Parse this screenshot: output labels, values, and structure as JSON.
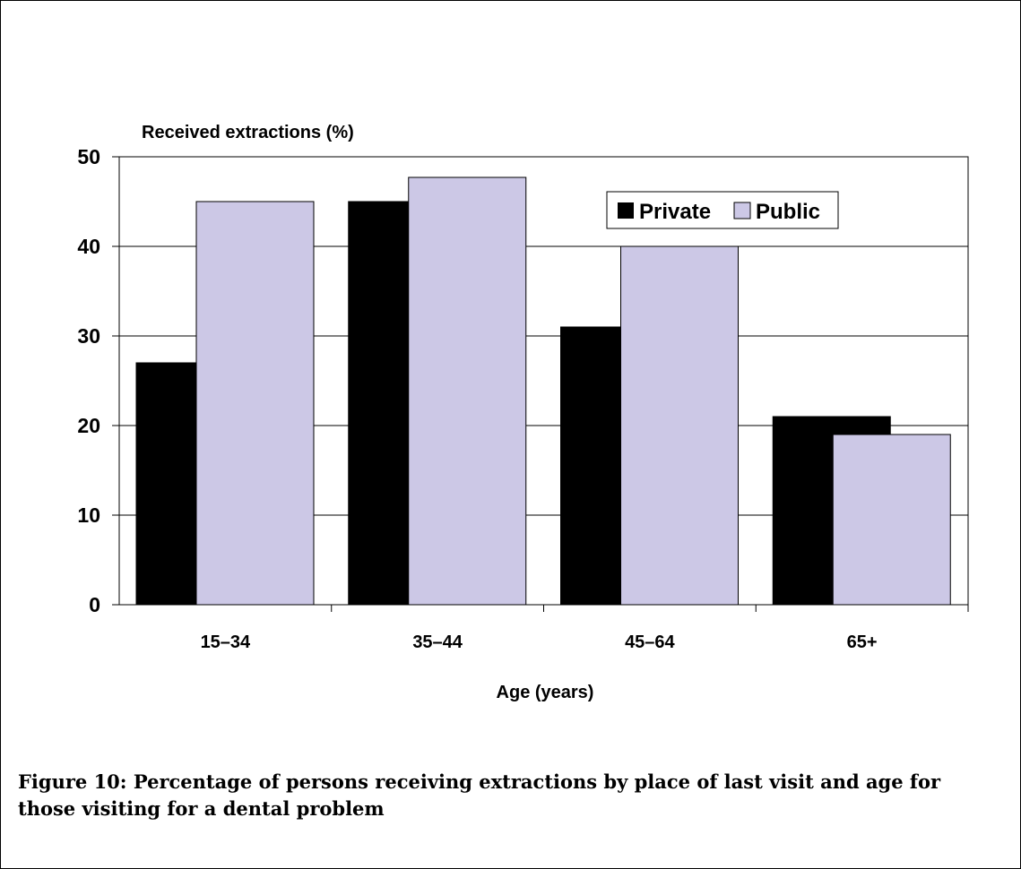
{
  "chart_data": {
    "type": "bar",
    "ylabel": "Received extractions (%)",
    "xlabel": "Age (years)",
    "categories": [
      "15–34",
      "35–44",
      "45–64",
      "65+"
    ],
    "series": [
      {
        "name": "Private",
        "color": "#000000",
        "values": [
          27,
          45,
          31,
          21
        ]
      },
      {
        "name": "Public",
        "color": "#ccc8e6",
        "values": [
          45,
          47.7,
          40,
          19
        ]
      }
    ],
    "ylim": [
      0,
      50
    ],
    "yticks": [
      "0",
      "10",
      "20",
      "30",
      "40",
      "50"
    ],
    "grid": true,
    "legend_position": "top-right"
  },
  "caption": {
    "line1": "Figure 10:  Percentage of persons receiving extractions by place of last visit and age for",
    "line2": "those visiting for a dental problem"
  }
}
